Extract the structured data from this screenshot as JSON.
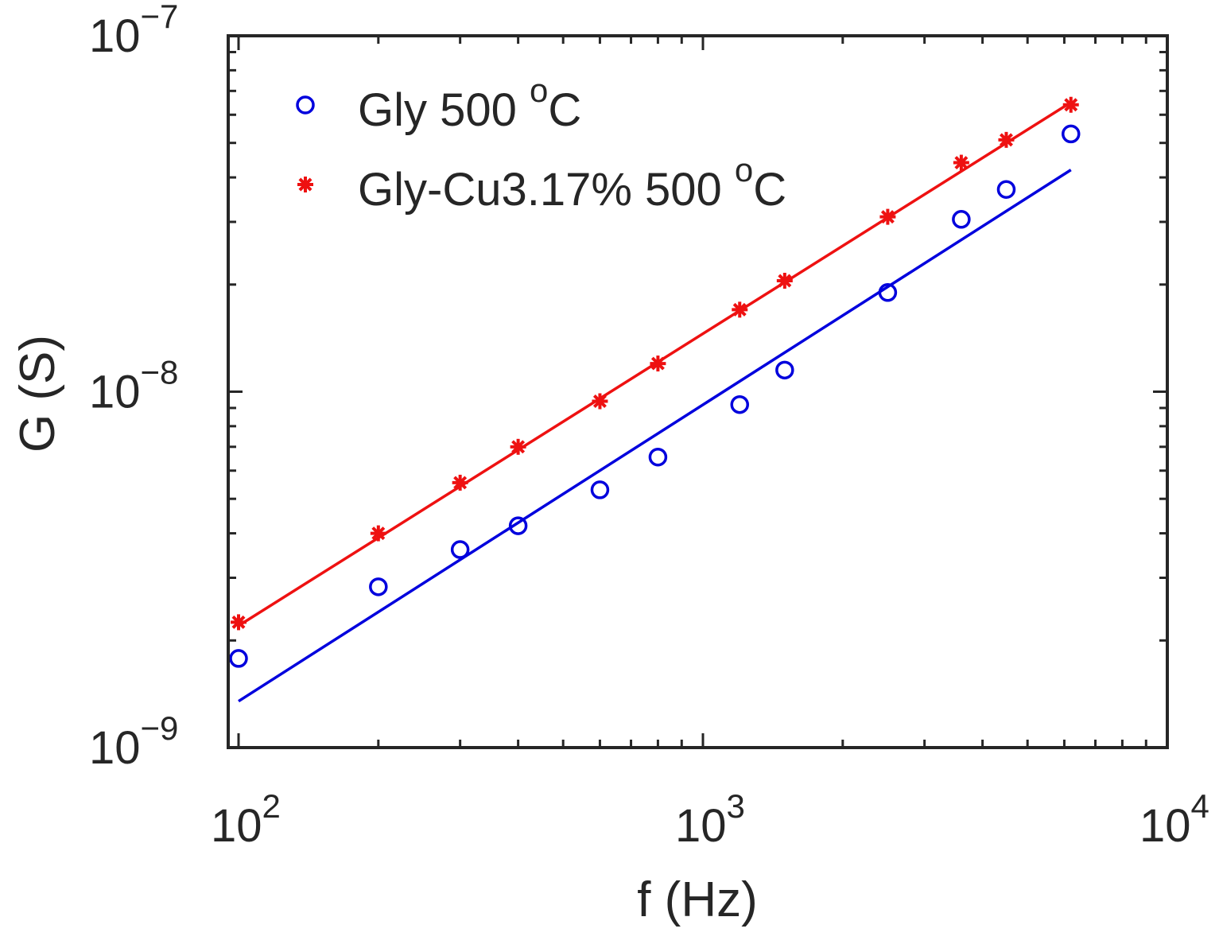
{
  "chart_data": {
    "type": "scatter",
    "title": "",
    "xlabel": "f (Hz)",
    "ylabel": "G (S)",
    "xscale": "log",
    "yscale": "log",
    "xlim": [
      95,
      10000
    ],
    "ylim": [
      1e-09,
      1e-07
    ],
    "grid": false,
    "legend_position": "top-left",
    "x_ticks": [
      {
        "value": 100,
        "base": "10",
        "exp": "2"
      },
      {
        "value": 1000,
        "base": "10",
        "exp": "3"
      },
      {
        "value": 10000,
        "base": "10",
        "exp": "4"
      }
    ],
    "y_ticks": [
      {
        "value": 1e-09,
        "base": "10",
        "exp": "−9"
      },
      {
        "value": 1e-08,
        "base": "10",
        "exp": "−8"
      },
      {
        "value": 1e-07,
        "base": "10",
        "exp": "−7"
      }
    ],
    "series": [
      {
        "name": "Gly 500 ",
        "superscript": "o",
        "suffix": "C",
        "color": "#0000dd",
        "marker": "circle",
        "x": [
          100,
          200,
          300,
          400,
          600,
          800,
          1200,
          1500,
          2500,
          3600,
          4500,
          6200
        ],
        "y": [
          1.78e-09,
          2.83e-09,
          3.6e-09,
          4.2e-09,
          5.3e-09,
          6.55e-09,
          9.2e-09,
          1.15e-08,
          1.9e-08,
          3.05e-08,
          3.7e-08,
          5.3e-08
        ],
        "fit": {
          "x": [
            100,
            6200
          ],
          "y": [
            1.35e-09,
            4.2e-08
          ]
        }
      },
      {
        "name": "Gly-Cu3.17% 500 ",
        "superscript": "o",
        "suffix": "C",
        "color": "#ee1111",
        "marker": "asterisk",
        "x": [
          100,
          200,
          300,
          400,
          600,
          800,
          1200,
          1500,
          2500,
          3600,
          4500,
          6200
        ],
        "y": [
          2.25e-09,
          4e-09,
          5.55e-09,
          7e-09,
          9.4e-09,
          1.2e-08,
          1.7e-08,
          2.05e-08,
          3.1e-08,
          4.4e-08,
          5.1e-08,
          6.4e-08
        ],
        "fit": {
          "x": [
            100,
            6200
          ],
          "y": [
            2.2e-09,
            6.5e-08
          ]
        }
      }
    ]
  }
}
